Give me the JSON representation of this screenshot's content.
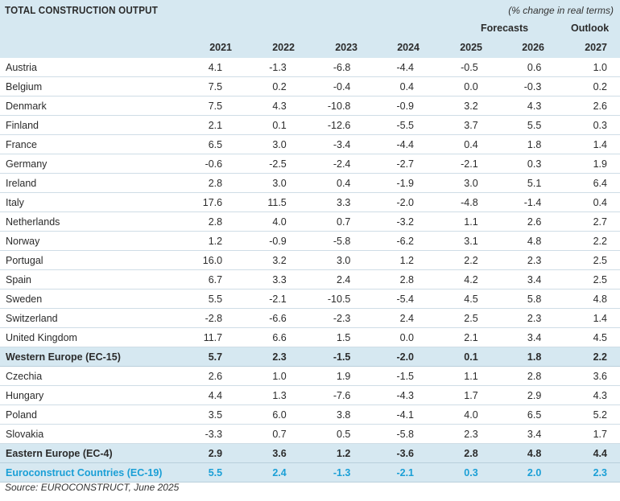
{
  "title": "TOTAL CONSTRUCTION OUTPUT",
  "unit_note": "(% change in real terms)",
  "forecasts_label": "Forecasts",
  "outlook_label": "Outlook",
  "years": [
    "2021",
    "2022",
    "2023",
    "2024",
    "2025",
    "2026",
    "2027"
  ],
  "rows": [
    {
      "name": "Austria",
      "values": [
        "4.1",
        "-1.3",
        "-6.8",
        "-4.4",
        "-0.5",
        "0.6",
        "1.0"
      ]
    },
    {
      "name": "Belgium",
      "values": [
        "7.5",
        "0.2",
        "-0.4",
        "0.4",
        "0.0",
        "-0.3",
        "0.2"
      ]
    },
    {
      "name": "Denmark",
      "values": [
        "7.5",
        "4.3",
        "-10.8",
        "-0.9",
        "3.2",
        "4.3",
        "2.6"
      ]
    },
    {
      "name": "Finland",
      "values": [
        "2.1",
        "0.1",
        "-12.6",
        "-5.5",
        "3.7",
        "5.5",
        "0.3"
      ]
    },
    {
      "name": "France",
      "values": [
        "6.5",
        "3.0",
        "-3.4",
        "-4.4",
        "0.4",
        "1.8",
        "1.4"
      ]
    },
    {
      "name": "Germany",
      "values": [
        "-0.6",
        "-2.5",
        "-2.4",
        "-2.7",
        "-2.1",
        "0.3",
        "1.9"
      ]
    },
    {
      "name": "Ireland",
      "values": [
        "2.8",
        "3.0",
        "0.4",
        "-1.9",
        "3.0",
        "5.1",
        "6.4"
      ]
    },
    {
      "name": "Italy",
      "values": [
        "17.6",
        "11.5",
        "3.3",
        "-2.0",
        "-4.8",
        "-1.4",
        "0.4"
      ]
    },
    {
      "name": "Netherlands",
      "values": [
        "2.8",
        "4.0",
        "0.7",
        "-3.2",
        "1.1",
        "2.6",
        "2.7"
      ]
    },
    {
      "name": "Norway",
      "values": [
        "1.2",
        "-0.9",
        "-5.8",
        "-6.2",
        "3.1",
        "4.8",
        "2.2"
      ]
    },
    {
      "name": "Portugal",
      "values": [
        "16.0",
        "3.2",
        "3.0",
        "1.2",
        "2.2",
        "2.3",
        "2.5"
      ]
    },
    {
      "name": "Spain",
      "values": [
        "6.7",
        "3.3",
        "2.4",
        "2.8",
        "4.2",
        "3.4",
        "2.5"
      ]
    },
    {
      "name": "Sweden",
      "values": [
        "5.5",
        "-2.1",
        "-10.5",
        "-5.4",
        "4.5",
        "5.8",
        "4.8"
      ]
    },
    {
      "name": "Switzerland",
      "values": [
        "-2.8",
        "-6.6",
        "-2.3",
        "2.4",
        "2.5",
        "2.3",
        "1.4"
      ]
    },
    {
      "name": "United Kingdom",
      "values": [
        "11.7",
        "6.6",
        "1.5",
        "0.0",
        "2.1",
        "3.4",
        "4.5"
      ]
    },
    {
      "name": "Western Europe (EC-15)",
      "values": [
        "5.7",
        "2.3",
        "-1.5",
        "-2.0",
        "0.1",
        "1.8",
        "2.2"
      ],
      "kind": "sub"
    },
    {
      "name": "Czechia",
      "values": [
        "2.6",
        "1.0",
        "1.9",
        "-1.5",
        "1.1",
        "2.8",
        "3.6"
      ]
    },
    {
      "name": "Hungary",
      "values": [
        "4.4",
        "1.3",
        "-7.6",
        "-4.3",
        "1.7",
        "2.9",
        "4.3"
      ]
    },
    {
      "name": "Poland",
      "values": [
        "3.5",
        "6.0",
        "3.8",
        "-4.1",
        "4.0",
        "6.5",
        "5.2"
      ]
    },
    {
      "name": "Slovakia",
      "values": [
        "-3.3",
        "0.7",
        "0.5",
        "-5.8",
        "2.3",
        "3.4",
        "1.7"
      ]
    },
    {
      "name": "Eastern Europe (EC-4)",
      "values": [
        "2.9",
        "3.6",
        "1.2",
        "-3.6",
        "2.8",
        "4.8",
        "4.4"
      ],
      "kind": "sub"
    },
    {
      "name": "Euroconstruct Countries (EC-19)",
      "values": [
        "5.5",
        "2.4",
        "-1.3",
        "-2.1",
        "0.3",
        "2.0",
        "2.3"
      ],
      "kind": "tot"
    }
  ],
  "source": "Source: EUROCONSTRUCT, June 2025"
}
